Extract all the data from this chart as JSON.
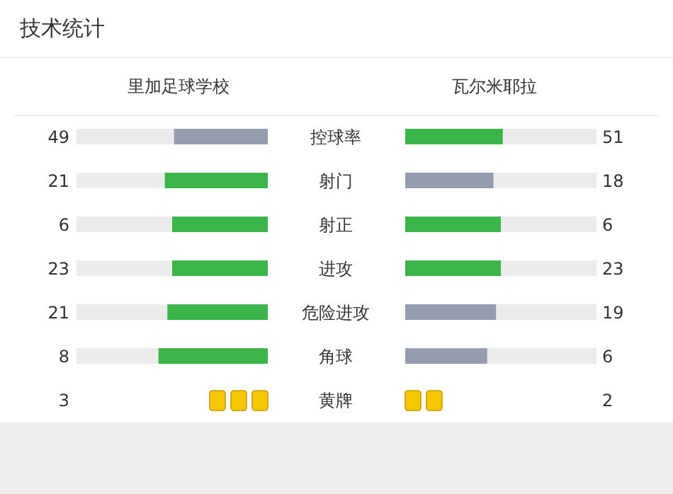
{
  "chart_data": [
    {
      "type": "other",
      "title": "技术统计",
      "data_labels": true,
      "categories": [
        "控球率",
        "射门",
        "射正",
        "进攻",
        "危险进攻",
        "角球"
      ],
      "series": [
        {
          "name": "里加足球学校",
          "values": [
            49,
            21,
            6,
            23,
            21,
            8
          ],
          "colors": [
            "#959cad",
            "#3bb54a",
            "#3bb54a",
            "#3bb54a",
            "#3bb54a",
            "#3bb54a"
          ]
        },
        {
          "name": "瓦尔米耶拉",
          "values": [
            51,
            18,
            6,
            23,
            19,
            6
          ],
          "colors": [
            "#3bb54a",
            "#959cad",
            "#3bb54a",
            "#3bb54a",
            "#959cad",
            "#959cad"
          ]
        }
      ]
    },
    {
      "type": "other",
      "data_labels": true,
      "categories": [
        "黄牌"
      ],
      "series": [
        {
          "values": [
            3
          ],
          "color": "#f7c600"
        },
        {
          "values": [
            2
          ],
          "color": "#f7c600"
        }
      ]
    }
  ]
}
